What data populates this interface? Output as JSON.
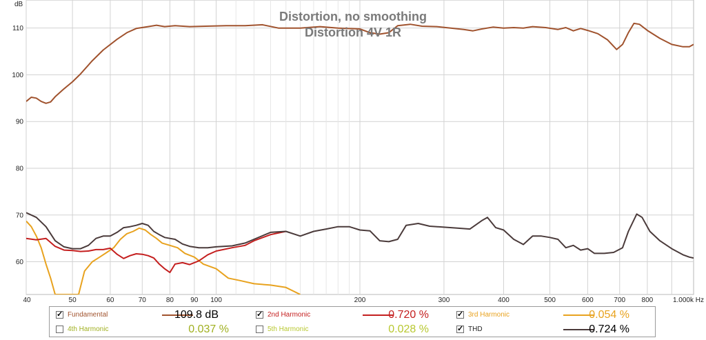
{
  "chart_data": {
    "type": "line",
    "title": "Distortion, no smoothing",
    "subtitle": "Distortion 4V 1R",
    "ylabel": "dB",
    "xscale": "log",
    "xlim": [
      40,
      1000
    ],
    "ylim": [
      53,
      116
    ],
    "x_ticks": [
      {
        "v": 40,
        "label": "40"
      },
      {
        "v": 50,
        "label": "50"
      },
      {
        "v": 60,
        "label": "60"
      },
      {
        "v": 70,
        "label": "70"
      },
      {
        "v": 80,
        "label": "80"
      },
      {
        "v": 90,
        "label": "90"
      },
      {
        "v": 100,
        "label": "100"
      },
      {
        "v": 200,
        "label": "200"
      },
      {
        "v": 300,
        "label": "300"
      },
      {
        "v": 400,
        "label": "400"
      },
      {
        "v": 500,
        "label": "500"
      },
      {
        "v": 600,
        "label": "600"
      },
      {
        "v": 700,
        "label": "700"
      },
      {
        "v": 800,
        "label": "800"
      },
      {
        "v": 1000,
        "label": "1.000k Hz"
      }
    ],
    "y_ticks": [
      60,
      70,
      80,
      90,
      100,
      110
    ],
    "grid": true,
    "series": [
      {
        "name": "Fundamental",
        "color": "#a0522d",
        "legend_value": "109.8 dB",
        "points": [
          [
            40,
            94.3
          ],
          [
            41,
            95.2
          ],
          [
            42,
            95.0
          ],
          [
            43,
            94.3
          ],
          [
            44,
            93.9
          ],
          [
            45,
            94.2
          ],
          [
            46,
            95.3
          ],
          [
            48,
            97.0
          ],
          [
            50,
            98.5
          ],
          [
            52,
            100.2
          ],
          [
            55,
            103.0
          ],
          [
            58,
            105.3
          ],
          [
            62,
            107.6
          ],
          [
            65,
            109.0
          ],
          [
            68,
            109.9
          ],
          [
            72,
            110.3
          ],
          [
            75,
            110.6
          ],
          [
            78,
            110.3
          ],
          [
            82,
            110.5
          ],
          [
            88,
            110.3
          ],
          [
            95,
            110.4
          ],
          [
            105,
            110.5
          ],
          [
            115,
            110.5
          ],
          [
            125,
            110.7
          ],
          [
            135,
            110.0
          ],
          [
            150,
            110.0
          ],
          [
            165,
            110.3
          ],
          [
            180,
            110.0
          ],
          [
            200,
            109.8
          ],
          [
            210,
            109.0
          ],
          [
            220,
            108.7
          ],
          [
            230,
            109.0
          ],
          [
            240,
            110.5
          ],
          [
            255,
            110.8
          ],
          [
            270,
            110.4
          ],
          [
            290,
            110.3
          ],
          [
            310,
            110.0
          ],
          [
            330,
            109.7
          ],
          [
            345,
            109.4
          ],
          [
            360,
            109.8
          ],
          [
            380,
            110.2
          ],
          [
            400,
            110.0
          ],
          [
            420,
            110.1
          ],
          [
            440,
            110.0
          ],
          [
            460,
            110.3
          ],
          [
            490,
            110.1
          ],
          [
            520,
            109.7
          ],
          [
            540,
            110.1
          ],
          [
            560,
            109.4
          ],
          [
            580,
            109.9
          ],
          [
            600,
            109.5
          ],
          [
            630,
            108.8
          ],
          [
            660,
            107.5
          ],
          [
            690,
            105.4
          ],
          [
            710,
            106.5
          ],
          [
            730,
            109.0
          ],
          [
            750,
            111.0
          ],
          [
            770,
            110.8
          ],
          [
            800,
            109.5
          ],
          [
            850,
            107.8
          ],
          [
            900,
            106.5
          ],
          [
            950,
            106.0
          ],
          [
            980,
            106.0
          ],
          [
            1000,
            106.5
          ]
        ]
      },
      {
        "name": "2nd Harmonic",
        "color": "#c41e1e",
        "legend_value": "0.720 %",
        "points": [
          [
            40,
            65.0
          ],
          [
            42,
            64.7
          ],
          [
            44,
            65.0
          ],
          [
            46,
            63.3
          ],
          [
            48,
            62.5
          ],
          [
            50,
            62.4
          ],
          [
            52,
            62.2
          ],
          [
            54,
            62.3
          ],
          [
            56,
            62.6
          ],
          [
            58,
            62.6
          ],
          [
            60,
            62.9
          ],
          [
            62,
            61.6
          ],
          [
            64,
            60.7
          ],
          [
            66,
            61.3
          ],
          [
            68,
            61.7
          ],
          [
            70,
            61.6
          ],
          [
            72,
            61.3
          ],
          [
            74,
            60.8
          ],
          [
            76,
            59.5
          ],
          [
            78,
            58.5
          ],
          [
            80,
            57.7
          ],
          [
            82,
            59.5
          ],
          [
            85,
            59.8
          ],
          [
            88,
            59.4
          ],
          [
            92,
            60.2
          ],
          [
            96,
            61.5
          ],
          [
            100,
            62.3
          ],
          [
            108,
            63.0
          ],
          [
            115,
            63.5
          ],
          [
            120,
            64.5
          ],
          [
            130,
            65.8
          ],
          [
            140,
            66.5
          ]
        ]
      },
      {
        "name": "3rd Harmonic",
        "color": "#e8a21e",
        "legend_value": "0.054 %",
        "points": [
          [
            40,
            68.7
          ],
          [
            41,
            67.5
          ],
          [
            42,
            65.5
          ],
          [
            43,
            63.0
          ],
          [
            44,
            59.5
          ],
          [
            45,
            56.5
          ],
          [
            46,
            53.0
          ],
          [
            51.5,
            53.0
          ],
          [
            53,
            58.0
          ],
          [
            55,
            60.0
          ],
          [
            57,
            61.0
          ],
          [
            59,
            62.0
          ],
          [
            61,
            63.0
          ],
          [
            63,
            64.8
          ],
          [
            65,
            66.0
          ],
          [
            67,
            66.5
          ],
          [
            69,
            67.2
          ],
          [
            71,
            66.8
          ],
          [
            73,
            65.8
          ],
          [
            75,
            65.0
          ],
          [
            77,
            64.0
          ],
          [
            80,
            63.5
          ],
          [
            83,
            63.0
          ],
          [
            86,
            61.8
          ],
          [
            90,
            61.0
          ],
          [
            94,
            59.5
          ],
          [
            100,
            58.5
          ],
          [
            106,
            56.5
          ],
          [
            112,
            56.0
          ],
          [
            120,
            55.3
          ],
          [
            130,
            55.0
          ],
          [
            140,
            54.5
          ],
          [
            150,
            53.0
          ]
        ]
      },
      {
        "name": "4th Harmonic",
        "color": "#a0b020",
        "legend_value": "0.037 %",
        "unchecked": true,
        "points": []
      },
      {
        "name": "5th Harmonic",
        "color": "#b8c830",
        "legend_value": "0.028 %",
        "unchecked": true,
        "points": []
      },
      {
        "name": "THD",
        "color": "#4a3a3a",
        "legend_value": "0.724 %",
        "points": [
          [
            40,
            70.5
          ],
          [
            42,
            69.5
          ],
          [
            44,
            67.5
          ],
          [
            46,
            64.5
          ],
          [
            48,
            63.2
          ],
          [
            50,
            62.8
          ],
          [
            52,
            62.8
          ],
          [
            54,
            63.5
          ],
          [
            56,
            65.0
          ],
          [
            58,
            65.5
          ],
          [
            60,
            65.5
          ],
          [
            62,
            66.3
          ],
          [
            64,
            67.3
          ],
          [
            66,
            67.5
          ],
          [
            68,
            67.8
          ],
          [
            70,
            68.2
          ],
          [
            72,
            67.8
          ],
          [
            74,
            66.5
          ],
          [
            76,
            65.8
          ],
          [
            78,
            65.2
          ],
          [
            80,
            65.0
          ],
          [
            82,
            64.8
          ],
          [
            85,
            63.8
          ],
          [
            88,
            63.3
          ],
          [
            92,
            63.0
          ],
          [
            96,
            63.0
          ],
          [
            100,
            63.2
          ],
          [
            108,
            63.4
          ],
          [
            115,
            64.0
          ],
          [
            120,
            64.8
          ],
          [
            130,
            66.3
          ],
          [
            140,
            66.5
          ],
          [
            150,
            65.5
          ],
          [
            160,
            66.5
          ],
          [
            170,
            67.0
          ],
          [
            180,
            67.5
          ],
          [
            190,
            67.5
          ],
          [
            200,
            66.8
          ],
          [
            210,
            66.6
          ],
          [
            220,
            64.5
          ],
          [
            230,
            64.3
          ],
          [
            240,
            64.8
          ],
          [
            250,
            67.8
          ],
          [
            265,
            68.2
          ],
          [
            280,
            67.6
          ],
          [
            300,
            67.4
          ],
          [
            320,
            67.2
          ],
          [
            340,
            67.0
          ],
          [
            360,
            68.8
          ],
          [
            370,
            69.5
          ],
          [
            385,
            67.3
          ],
          [
            400,
            66.8
          ],
          [
            420,
            64.8
          ],
          [
            440,
            63.7
          ],
          [
            460,
            65.5
          ],
          [
            480,
            65.5
          ],
          [
            500,
            65.2
          ],
          [
            520,
            64.8
          ],
          [
            540,
            63.0
          ],
          [
            560,
            63.5
          ],
          [
            580,
            62.5
          ],
          [
            600,
            62.8
          ],
          [
            620,
            61.8
          ],
          [
            650,
            61.8
          ],
          [
            680,
            62.0
          ],
          [
            710,
            63.0
          ],
          [
            730,
            66.5
          ],
          [
            760,
            70.2
          ],
          [
            780,
            69.5
          ],
          [
            810,
            66.5
          ],
          [
            850,
            64.5
          ],
          [
            900,
            62.8
          ],
          [
            950,
            61.5
          ],
          [
            980,
            61.0
          ],
          [
            1000,
            60.8
          ]
        ]
      }
    ]
  }
}
